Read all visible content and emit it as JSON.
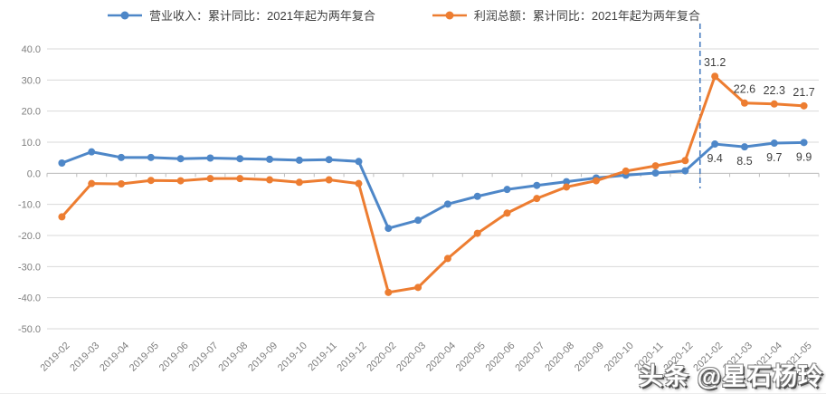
{
  "watermark": {
    "text": "头条 @星石杨玲"
  },
  "chart_data": {
    "type": "line",
    "title": "",
    "xlabel": "",
    "ylabel": "",
    "grid": true,
    "legend_position": "top",
    "ylim": [
      -50,
      40
    ],
    "ytick_step": 10,
    "categories": [
      "2019-02",
      "2019-03",
      "2019-04",
      "2019-05",
      "2019-06",
      "2019-07",
      "2019-08",
      "2019-09",
      "2019-10",
      "2019-11",
      "2019-12",
      "2020-02",
      "2020-03",
      "2020-04",
      "2020-05",
      "2020-06",
      "2020-07",
      "2020-08",
      "2020-09",
      "2020-10",
      "2020-11",
      "2020-12",
      "2021-02",
      "2021-03",
      "2021-04",
      "2021-05"
    ],
    "series": [
      {
        "name": "营业收入：累计同比：2021年起为两年复合",
        "color": "#4E87C8",
        "values": [
          3.3,
          6.9,
          5.1,
          5.1,
          4.7,
          4.9,
          4.7,
          4.5,
          4.2,
          4.4,
          3.8,
          -17.7,
          -15.1,
          -9.9,
          -7.4,
          -5.2,
          -3.9,
          -2.7,
          -1.5,
          -0.6,
          0.1,
          0.8,
          9.4,
          8.5,
          9.7,
          9.9
        ]
      },
      {
        "name": "利润总额：累计同比：2021年起为两年复合",
        "color": "#ED7D31",
        "values": [
          -14.0,
          -3.3,
          -3.4,
          -2.3,
          -2.4,
          -1.7,
          -1.7,
          -2.1,
          -2.9,
          -2.1,
          -3.3,
          -38.3,
          -36.7,
          -27.4,
          -19.3,
          -12.8,
          -8.1,
          -4.4,
          -2.4,
          0.7,
          2.4,
          4.1,
          31.2,
          22.6,
          22.3,
          21.7
        ]
      }
    ],
    "point_labels": [
      {
        "series": 1,
        "index": 22,
        "text": "31.2",
        "pos": "above"
      },
      {
        "series": 1,
        "index": 23,
        "text": "22.6",
        "pos": "above"
      },
      {
        "series": 1,
        "index": 24,
        "text": "22.3",
        "pos": "above"
      },
      {
        "series": 1,
        "index": 25,
        "text": "21.7",
        "pos": "above"
      },
      {
        "series": 0,
        "index": 22,
        "text": "9.4",
        "pos": "below"
      },
      {
        "series": 0,
        "index": 23,
        "text": "8.5",
        "pos": "below"
      },
      {
        "series": 0,
        "index": 24,
        "text": "9.7",
        "pos": "below"
      },
      {
        "series": 0,
        "index": 25,
        "text": "9.9",
        "pos": "below"
      }
    ],
    "divider": {
      "after_category": "2020-12",
      "style": "dashed",
      "color": "#4C7FC0"
    },
    "style": {
      "grid_color": "#D9D9D9",
      "axis_color": "#BFBFBF",
      "tick_label_color": "#7F7F7F",
      "data_label_color": "#3F3F3F"
    }
  }
}
